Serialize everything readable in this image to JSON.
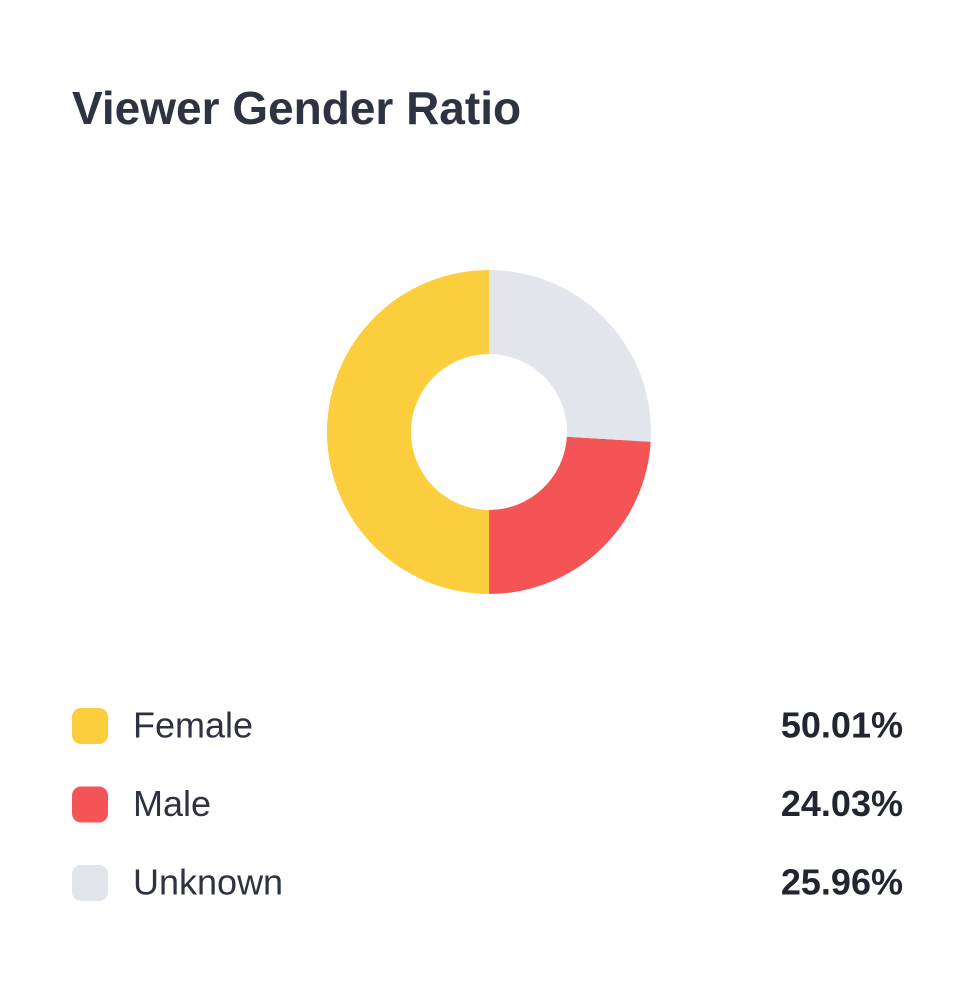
{
  "chart_data": {
    "type": "pie",
    "title": "Viewer Gender Ratio",
    "categories": [
      "Female",
      "Male",
      "Unknown"
    ],
    "values": [
      50.01,
      24.03,
      25.96
    ],
    "value_labels": [
      "50.01%",
      "24.03%",
      "25.96%"
    ],
    "colors": [
      "#fccd3c",
      "#f55456",
      "#e2e6ec"
    ]
  }
}
